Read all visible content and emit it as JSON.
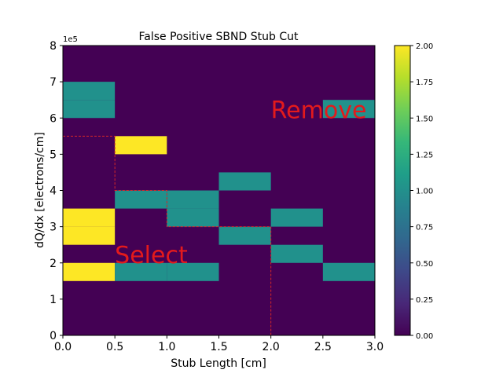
{
  "chart_data": {
    "type": "heatmap",
    "title": "False Positive SBND Stub Cut",
    "xlabel": "Stub Length [cm]",
    "ylabel": "dQ/dx [electrons/cm]",
    "y_offset_label": "1e5",
    "xlim": [
      0,
      3
    ],
    "ylim": [
      0,
      800000
    ],
    "x_bin_width": 0.5,
    "y_bin_width": 50000,
    "x_ticks": [
      "0.0",
      "0.5",
      "1.0",
      "1.5",
      "2.0",
      "2.5",
      "3.0"
    ],
    "y_ticks": [
      "0",
      "1",
      "2",
      "3",
      "4",
      "5",
      "6",
      "7",
      "8"
    ],
    "colorbar": {
      "colormap": "viridis",
      "range": [
        0,
        2
      ],
      "ticks": [
        "0.00",
        "0.25",
        "0.50",
        "0.75",
        "1.00",
        "1.25",
        "1.50",
        "1.75",
        "2.00"
      ]
    },
    "cells": [
      {
        "x": 0.0,
        "y": 600000,
        "count": 1
      },
      {
        "x": 0.0,
        "y": 650000,
        "count": 1
      },
      {
        "x": 0.5,
        "y": 500000,
        "count": 2
      },
      {
        "x": 0.5,
        "y": 350000,
        "count": 1
      },
      {
        "x": 1.0,
        "y": 350000,
        "count": 1
      },
      {
        "x": 1.0,
        "y": 300000,
        "count": 1
      },
      {
        "x": 0.0,
        "y": 300000,
        "count": 2
      },
      {
        "x": 0.0,
        "y": 250000,
        "count": 2
      },
      {
        "x": 0.0,
        "y": 150000,
        "count": 2
      },
      {
        "x": 0.5,
        "y": 150000,
        "count": 1
      },
      {
        "x": 1.0,
        "y": 150000,
        "count": 1
      },
      {
        "x": 1.5,
        "y": 400000,
        "count": 1
      },
      {
        "x": 1.5,
        "y": 250000,
        "count": 1
      },
      {
        "x": 2.0,
        "y": 300000,
        "count": 1
      },
      {
        "x": 2.0,
        "y": 200000,
        "count": 1
      },
      {
        "x": 2.5,
        "y": 600000,
        "count": 1
      },
      {
        "x": 2.5,
        "y": 150000,
        "count": 1
      }
    ],
    "cut_line": [
      [
        0.0,
        550000
      ],
      [
        0.5,
        550000
      ],
      [
        0.5,
        400000
      ],
      [
        1.0,
        400000
      ],
      [
        1.0,
        300000
      ],
      [
        2.0,
        300000
      ],
      [
        2.0,
        0
      ]
    ],
    "cut_line_color": "#d62728",
    "annotations": [
      {
        "text": "Remove",
        "x": 2.0,
        "y": 600000
      },
      {
        "text": "Select",
        "x": 0.5,
        "y": 200000
      }
    ],
    "annotation_color": "#e31a1c"
  }
}
